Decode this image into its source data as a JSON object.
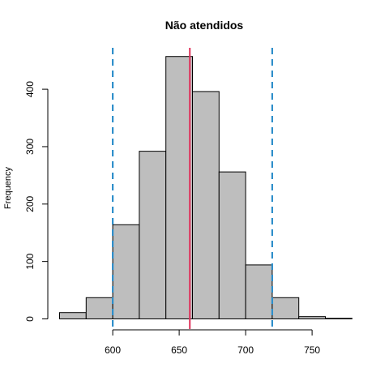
{
  "chart_data": {
    "type": "bar",
    "title": "Não atendidos",
    "xlabel": "",
    "ylabel": "Frequency",
    "bins": [
      {
        "start": 560,
        "end": 580,
        "count": 11
      },
      {
        "start": 580,
        "end": 600,
        "count": 37
      },
      {
        "start": 600,
        "end": 620,
        "count": 164
      },
      {
        "start": 620,
        "end": 640,
        "count": 292
      },
      {
        "start": 640,
        "end": 660,
        "count": 457
      },
      {
        "start": 660,
        "end": 680,
        "count": 396
      },
      {
        "start": 680,
        "end": 700,
        "count": 256
      },
      {
        "start": 700,
        "end": 720,
        "count": 94
      },
      {
        "start": 720,
        "end": 740,
        "count": 37
      },
      {
        "start": 740,
        "end": 760,
        "count": 4
      },
      {
        "start": 760,
        "end": 780,
        "count": 1
      }
    ],
    "xlim": [
      560,
      780
    ],
    "ylim": [
      0,
      457
    ],
    "xticks": [
      "600",
      "650",
      "700",
      "750"
    ],
    "yticks": [
      "0",
      "100",
      "200",
      "300",
      "400"
    ],
    "reference_lines": [
      {
        "x": 600,
        "style": "dashed",
        "color": "#2F8FCB"
      },
      {
        "x": 720,
        "style": "dashed",
        "color": "#2F8FCB"
      },
      {
        "x": 658,
        "style": "solid",
        "color": "#E0305A"
      }
    ],
    "bar_color": "#BEBEBE",
    "grid": false,
    "legend": "none"
  }
}
